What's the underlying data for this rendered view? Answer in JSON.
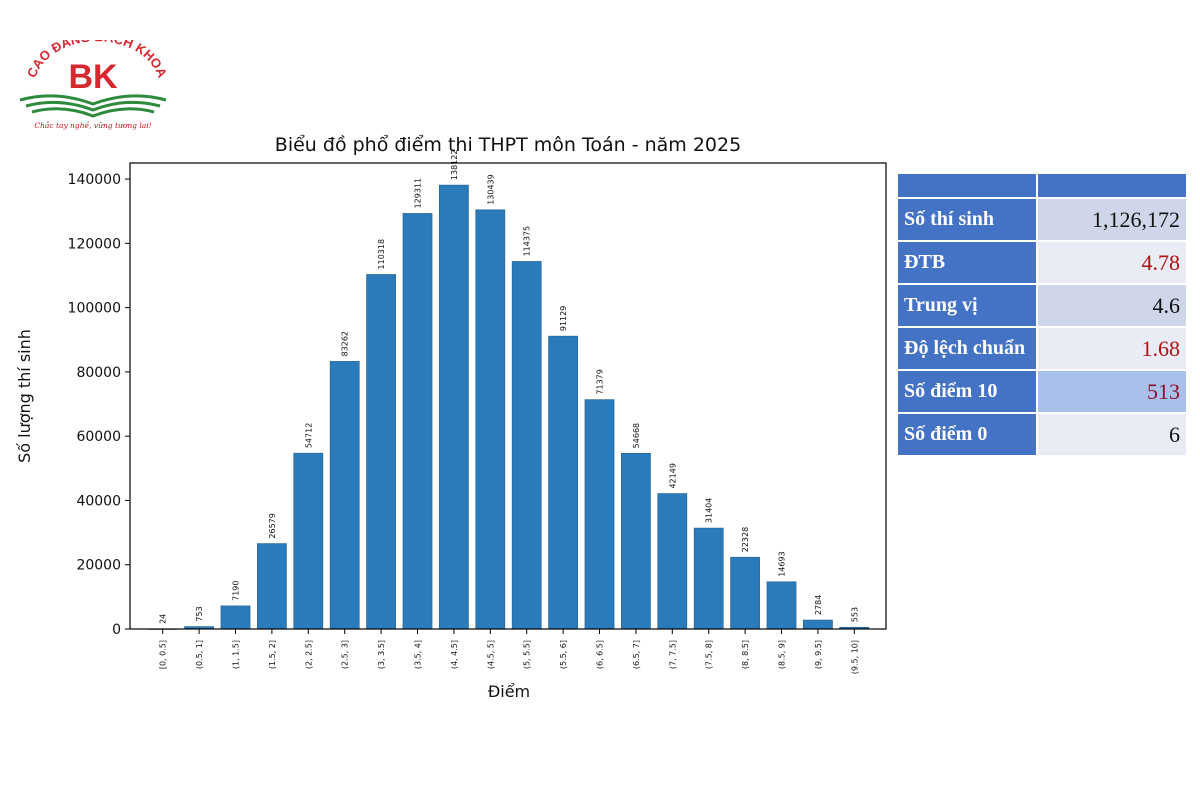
{
  "logo": {
    "arc_text": "CAO ĐẲNG BÁCH KHOA",
    "letters": "BK",
    "slogan": "Chắc tay nghề, vững tương lai!",
    "colors": {
      "red": "#d7282f",
      "green": "#2e8b3e"
    }
  },
  "chart_data": {
    "type": "bar",
    "title": "Biểu đồ phổ điểm thi THPT môn Toán - năm 2025",
    "xlabel": "Điểm",
    "ylabel": "Số lượng thí sinh",
    "categories": [
      "[0, 0.5]",
      "(0.5, 1]",
      "(1, 1.5]",
      "(1.5, 2]",
      "(2, 2.5]",
      "(2.5, 3]",
      "(3, 3.5]",
      "(3.5, 4]",
      "(4, 4.5]",
      "(4.5, 5]",
      "(5, 5.5]",
      "(5.5, 6]",
      "(6, 6.5]",
      "(6.5, 7]",
      "(7, 7.5]",
      "(7.5, 8]",
      "(8, 8.5]",
      "(8.5, 9]",
      "(9, 9.5]",
      "(9.5, 10]"
    ],
    "values": [
      24,
      753,
      7190,
      26579,
      54712,
      83262,
      110318,
      129311,
      138122,
      130439,
      114375,
      91129,
      71379,
      54668,
      42149,
      31404,
      22328,
      14693,
      2784,
      553
    ],
    "yticks": [
      0,
      20000,
      40000,
      60000,
      80000,
      100000,
      120000,
      140000
    ],
    "ylim": [
      0,
      145000
    ],
    "bar_color": "#2b7bba",
    "grid": false,
    "legend": false
  },
  "stats": {
    "rows": [
      {
        "label": "Số thí sinh",
        "value": "1,126,172"
      },
      {
        "label": "ĐTB",
        "value": "4.78"
      },
      {
        "label": "Trung vị",
        "value": "4.6"
      },
      {
        "label": "Độ lệch chuẩn",
        "value": "1.68"
      },
      {
        "label": "Số điểm 10",
        "value": "513"
      },
      {
        "label": "Số điểm 0",
        "value": "6"
      }
    ]
  }
}
